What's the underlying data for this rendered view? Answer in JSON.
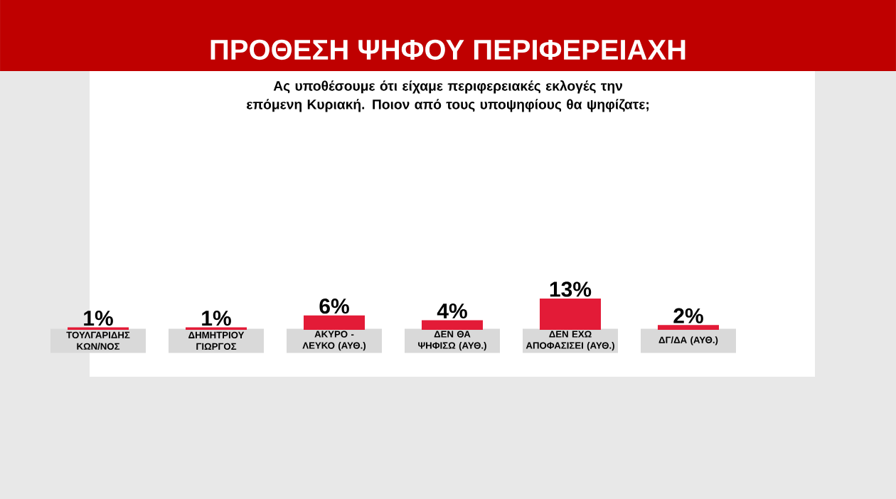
{
  "chart_data": {
    "type": "bar",
    "title": "ΠΡΟΘΕΣΗ ΨΗΦΟΥ ΠΕΡΙΦΕΡΕΙΑΧΗ",
    "subtitle": "Ας υποθέσουμε ότι είχαμε περιφερειακές εκλογές την επόμενη Κυριακή. Ποιον από τους υποψηφίους θα ψηφίζατε;",
    "categories": [
      "ΤΟΥΛΓΑΡΙΔΗΣ ΚΩΝ/ΝΟΣ",
      "ΔΗΜΗΤΡΙΟΥ ΓΙΩΡΓΟΣ",
      "ΑΚΥΡΟ - ΛΕΥΚΟ (ΑΥΘ.)",
      "ΔΕΝ ΘΑ ΨΗΦΙΣΩ (ΑΥΘ.)",
      "ΔΕΝ ΕΧΩ ΑΠΟΦΑΣΙΣΕΙ (ΑΥΘ.)",
      "ΔΓ/ΔΑ (ΑΥΘ.)"
    ],
    "values": [
      1,
      1,
      6,
      4,
      13,
      2
    ],
    "value_labels": [
      "1%",
      "1%",
      "6%",
      "4%",
      "13%",
      "2%"
    ],
    "color": "#e31b37"
  }
}
